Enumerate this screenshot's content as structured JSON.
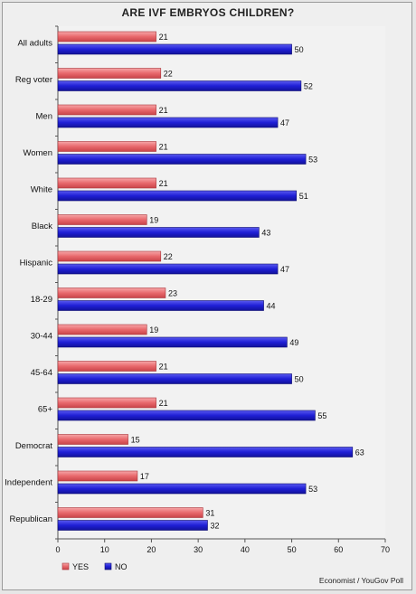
{
  "chart_data": {
    "type": "bar",
    "orientation": "horizontal",
    "title": "ARE IVF EMBRYOS CHILDREN?",
    "categories": [
      "All adults",
      "Reg voter",
      "Men",
      "Women",
      "White",
      "Black",
      "Hispanic",
      "18-29",
      "30-44",
      "45-64",
      "65+",
      "Democrat",
      "Independent",
      "Republican"
    ],
    "series": [
      {
        "name": "YES",
        "color": "#e8686c",
        "values": [
          21,
          22,
          21,
          21,
          21,
          19,
          22,
          23,
          19,
          21,
          21,
          15,
          17,
          31
        ]
      },
      {
        "name": "NO",
        "color": "#1f1fd6",
        "values": [
          50,
          52,
          47,
          53,
          51,
          43,
          47,
          44,
          49,
          50,
          55,
          63,
          53,
          32
        ]
      }
    ],
    "xlim": [
      0,
      70
    ],
    "xticks": [
      0,
      10,
      20,
      30,
      40,
      50,
      60,
      70
    ],
    "legend_placement": "bottom-left",
    "source": "Economist / YouGov Poll"
  }
}
